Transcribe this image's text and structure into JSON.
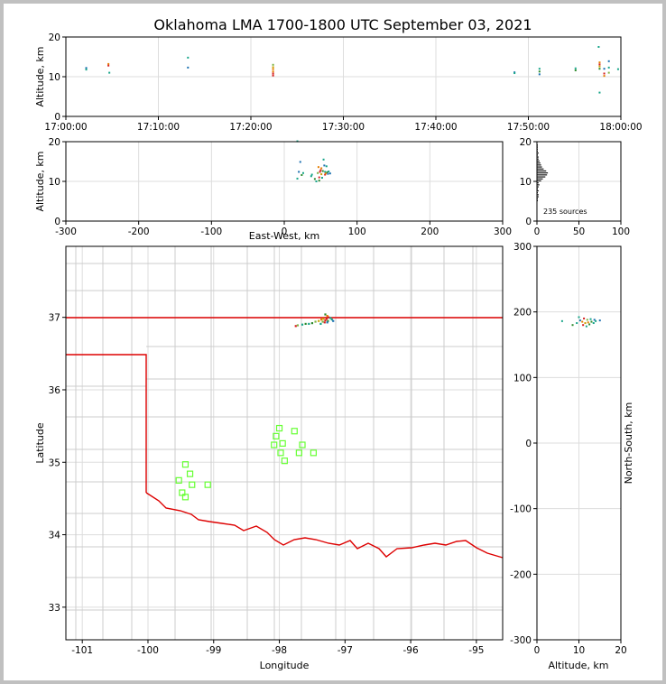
{
  "title": "Oklahoma LMA 1700-1800 UTC September 03, 2021",
  "colors": {
    "background": "#ffffff",
    "outer": "#c0c0c0",
    "grid": "#dddddd",
    "county": "#cccccc",
    "state_line": "#dd0000",
    "station": "#66ff33",
    "sources": [
      "#0a1a7a",
      "#1a6fb0",
      "#17a589",
      "#2e8b2e",
      "#7cb342",
      "#c9a000",
      "#e67e00",
      "#d62020"
    ]
  },
  "chart_data": [
    {
      "id": "time_height",
      "type": "scatter",
      "xlabel": "",
      "ylabel": "Altitude, km",
      "xlim_minutes": [
        0,
        60
      ],
      "ylim": [
        0,
        20
      ],
      "x_ticks": [
        {
          "value": 0,
          "label": "17:00:00"
        },
        {
          "value": 10,
          "label": "17:10:00"
        },
        {
          "value": 20,
          "label": "17:20:00"
        },
        {
          "value": 30,
          "label": "17:30:00"
        },
        {
          "value": 40,
          "label": "17:40:00"
        },
        {
          "value": 50,
          "label": "17:50:00"
        },
        {
          "value": 60,
          "label": "18:00:00"
        }
      ],
      "y_ticks": [
        0,
        10,
        20
      ],
      "points": [
        [
          2.2,
          12.2,
          1
        ],
        [
          2.2,
          11.8,
          2
        ],
        [
          4.6,
          13.2,
          6
        ],
        [
          4.6,
          12.8,
          7
        ],
        [
          4.7,
          11.0,
          2
        ],
        [
          13.2,
          14.8,
          2
        ],
        [
          13.2,
          12.3,
          1
        ],
        [
          22.4,
          13.0,
          4
        ],
        [
          22.4,
          12.4,
          5
        ],
        [
          22.4,
          11.9,
          6
        ],
        [
          22.4,
          11.3,
          6
        ],
        [
          22.4,
          10.8,
          7
        ],
        [
          22.4,
          10.3,
          7
        ],
        [
          48.5,
          11.1,
          1
        ],
        [
          48.5,
          10.9,
          2
        ],
        [
          51.2,
          12.0,
          2
        ],
        [
          51.2,
          11.3,
          3
        ],
        [
          51.2,
          10.6,
          1
        ],
        [
          55.1,
          12.1,
          2
        ],
        [
          55.1,
          11.6,
          3
        ],
        [
          57.6,
          17.5,
          2
        ],
        [
          57.7,
          13.6,
          6
        ],
        [
          57.7,
          13.1,
          7
        ],
        [
          57.7,
          12.6,
          5
        ],
        [
          57.7,
          12.0,
          3
        ],
        [
          57.7,
          6.0,
          2
        ],
        [
          58.2,
          12.0,
          1
        ],
        [
          58.2,
          10.8,
          7
        ],
        [
          58.2,
          10.2,
          6
        ],
        [
          58.7,
          13.9,
          1
        ],
        [
          58.7,
          12.3,
          2
        ],
        [
          58.7,
          11.0,
          4
        ],
        [
          59.7,
          11.9,
          2
        ]
      ]
    },
    {
      "id": "ew_height",
      "type": "scatter",
      "xlabel": "East-West, km",
      "ylabel": "Altitude, km",
      "xlim": [
        -300,
        300
      ],
      "ylim": [
        0,
        20
      ],
      "x_ticks": [
        -300,
        -200,
        -100,
        0,
        100,
        200,
        300
      ],
      "y_ticks": [
        0,
        10,
        20
      ],
      "points": [
        [
          18,
          20.1,
          2
        ],
        [
          22,
          14.9,
          1
        ],
        [
          18,
          10.7,
          2
        ],
        [
          20,
          12.4,
          1
        ],
        [
          24,
          11.6,
          3
        ],
        [
          26,
          12.1,
          2
        ],
        [
          37,
          11.3,
          2
        ],
        [
          42,
          10.6,
          3
        ],
        [
          44,
          10.0,
          2
        ],
        [
          46,
          12.1,
          4
        ],
        [
          47,
          13.6,
          6
        ],
        [
          48,
          11.0,
          7
        ],
        [
          49,
          12.4,
          7
        ],
        [
          50,
          12.8,
          7
        ],
        [
          51,
          13.3,
          6
        ],
        [
          51,
          11.8,
          5
        ],
        [
          52,
          10.9,
          2
        ],
        [
          53,
          12.6,
          3
        ],
        [
          54,
          15.5,
          2
        ],
        [
          55,
          14.0,
          1
        ],
        [
          56,
          12.4,
          2
        ],
        [
          56,
          11.7,
          7
        ],
        [
          57,
          12.0,
          6
        ],
        [
          58,
          13.8,
          2
        ],
        [
          59,
          12.3,
          3
        ],
        [
          60,
          11.9,
          1
        ],
        [
          61,
          12.5,
          2
        ],
        [
          63,
          12.0,
          1
        ],
        [
          38,
          11.7,
          2
        ],
        [
          48,
          10.2,
          3
        ]
      ]
    },
    {
      "id": "height_histogram",
      "type": "bar",
      "xlabel": "",
      "ylabel": "",
      "xlim": [
        0,
        100
      ],
      "ylim": [
        0,
        20
      ],
      "x_ticks": [
        0,
        50,
        100
      ],
      "y_ticks": [
        0,
        10,
        20
      ],
      "annotation": "235 sources",
      "altitude_bins_km": [
        5,
        5.5,
        6,
        6.5,
        7,
        7.5,
        8,
        8.5,
        9,
        9.5,
        10,
        10.5,
        11,
        11.5,
        12,
        12.5,
        13,
        13.5,
        14,
        14.5,
        15,
        15.5,
        16,
        16.5,
        17,
        17.5,
        18,
        18.5,
        19
      ],
      "counts": [
        1,
        1,
        2,
        2,
        1,
        2,
        1,
        2,
        3,
        2,
        5,
        7,
        10,
        12,
        13,
        11,
        8,
        6,
        5,
        4,
        3,
        2,
        2,
        1,
        2,
        1,
        1,
        1,
        1
      ]
    },
    {
      "id": "plan_view",
      "type": "map",
      "xlabel": "Longitude",
      "ylabel": "Latitude",
      "xlim": [
        -101.25,
        -94.6
      ],
      "ylim": [
        32.55,
        37.98
      ],
      "x_ticks": [
        -101,
        -100,
        -99,
        -98,
        -97,
        -96,
        -95
      ],
      "y_ticks": [
        33,
        34,
        35,
        36,
        37
      ],
      "stations": [
        [
          -98.0,
          35.47
        ],
        [
          -98.05,
          35.36
        ],
        [
          -97.95,
          35.26
        ],
        [
          -98.08,
          35.24
        ],
        [
          -97.77,
          35.43
        ],
        [
          -97.65,
          35.24
        ],
        [
          -97.98,
          35.13
        ],
        [
          -97.7,
          35.13
        ],
        [
          -97.92,
          35.02
        ],
        [
          -97.48,
          35.13
        ],
        [
          -99.43,
          34.97
        ],
        [
          -99.36,
          34.84
        ],
        [
          -99.53,
          34.75
        ],
        [
          -99.33,
          34.69
        ],
        [
          -99.09,
          34.69
        ],
        [
          -99.48,
          34.58
        ],
        [
          -99.43,
          34.52
        ]
      ],
      "points": [
        [
          -97.3,
          37.04,
          3
        ],
        [
          -97.27,
          37.02,
          6
        ],
        [
          -97.25,
          37.0,
          7
        ],
        [
          -97.28,
          36.98,
          7
        ],
        [
          -97.33,
          36.98,
          5
        ],
        [
          -97.36,
          36.97,
          6
        ],
        [
          -97.3,
          36.96,
          7
        ],
        [
          -97.22,
          36.99,
          2
        ],
        [
          -97.26,
          36.95,
          3
        ],
        [
          -97.34,
          36.94,
          4
        ],
        [
          -97.4,
          36.95,
          5
        ],
        [
          -97.45,
          36.94,
          4
        ],
        [
          -97.5,
          36.92,
          3
        ],
        [
          -97.55,
          36.91,
          2
        ],
        [
          -97.6,
          36.91,
          3
        ],
        [
          -97.65,
          36.9,
          2
        ],
        [
          -97.72,
          36.89,
          4
        ],
        [
          -97.75,
          36.88,
          7
        ],
        [
          -97.31,
          36.93,
          7
        ],
        [
          -97.27,
          36.93,
          1
        ],
        [
          -97.37,
          36.91,
          2
        ],
        [
          -97.2,
          36.97,
          2
        ],
        [
          -97.18,
          36.95,
          1
        ]
      ]
    },
    {
      "id": "ns_height",
      "type": "scatter",
      "xlabel": "Altitude, km",
      "ylabel": "North-South, km",
      "xlim": [
        0,
        20
      ],
      "ylim": [
        -300,
        300
      ],
      "x_ticks": [
        0,
        10,
        20
      ],
      "y_ticks": [
        -300,
        -200,
        -100,
        0,
        100,
        200,
        300
      ],
      "points": [
        [
          6,
          186,
          2
        ],
        [
          8.5,
          180,
          3
        ],
        [
          9.5,
          183,
          2
        ],
        [
          10,
          192,
          2
        ],
        [
          10.3,
          187,
          1
        ],
        [
          10.8,
          185,
          6
        ],
        [
          11,
          180,
          7
        ],
        [
          11.2,
          190,
          7
        ],
        [
          11.5,
          183,
          5
        ],
        [
          11.8,
          178,
          2
        ],
        [
          12,
          188,
          4
        ],
        [
          12.2,
          184,
          6
        ],
        [
          12.5,
          181,
          3
        ],
        [
          12.8,
          189,
          2
        ],
        [
          13,
          185,
          3
        ],
        [
          13.5,
          183,
          2
        ],
        [
          13.7,
          188,
          1
        ],
        [
          14,
          186,
          2
        ],
        [
          15,
          187,
          1
        ]
      ]
    }
  ]
}
